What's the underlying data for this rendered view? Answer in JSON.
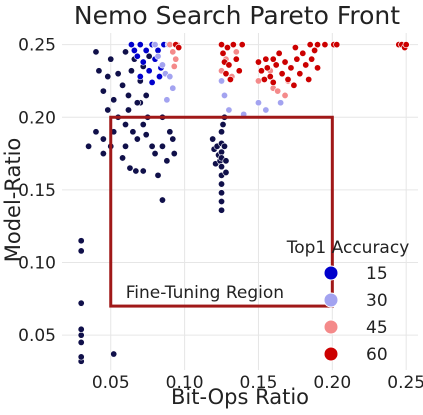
{
  "chart_data": {
    "type": "scatter",
    "title": "Nemo Search Pareto Front",
    "xlabel": "Bit-Ops Ratio",
    "ylabel": "Model-Ratio",
    "xlim": [
      0.017,
      0.258
    ],
    "ylim": [
      0.026,
      0.258
    ],
    "xticks": [
      0.05,
      0.1,
      0.15,
      0.2,
      0.25
    ],
    "xtick_labels": [
      "0.05",
      "0.10",
      "0.15",
      "0.20",
      "0.25"
    ],
    "yticks": [
      0.05,
      0.1,
      0.15,
      0.2,
      0.25
    ],
    "ytick_labels": [
      "0.05",
      "0.10",
      "0.15",
      "0.20",
      "0.25"
    ],
    "grid": true,
    "hue": "Top1 Accuracy",
    "colors": {
      "15": "#0000cc",
      "30": "#a3a3f0",
      "45": "#f48a8a",
      "60": "#cc0000",
      "low": "#10104a",
      "frame": "#a01818"
    },
    "legend": {
      "title": "Top1 Accuracy",
      "placement": "bottom-right",
      "entries": [
        {
          "label": "15",
          "value": 15
        },
        {
          "label": "30",
          "value": 30
        },
        {
          "label": "45",
          "value": 45
        },
        {
          "label": "60",
          "value": 60
        }
      ]
    },
    "annotations": [
      {
        "type": "rectangle",
        "label": "Fine-Tuning Region",
        "x": [
          0.05,
          0.2
        ],
        "y": [
          0.07,
          0.2
        ]
      }
    ],
    "series": [
      {
        "accuracy": 5,
        "points": [
          [
            0.03,
            0.032
          ],
          [
            0.03,
            0.035
          ],
          [
            0.03,
            0.045
          ],
          [
            0.03,
            0.05
          ],
          [
            0.03,
            0.054
          ],
          [
            0.03,
            0.072
          ],
          [
            0.03,
            0.108
          ],
          [
            0.03,
            0.115
          ],
          [
            0.052,
            0.037
          ],
          [
            0.035,
            0.18
          ],
          [
            0.04,
            0.19
          ],
          [
            0.045,
            0.175
          ],
          [
            0.045,
            0.185
          ],
          [
            0.048,
            0.205
          ],
          [
            0.05,
            0.18
          ],
          [
            0.052,
            0.19
          ],
          [
            0.055,
            0.2
          ],
          [
            0.058,
            0.172
          ],
          [
            0.06,
            0.18
          ],
          [
            0.06,
            0.195
          ],
          [
            0.062,
            0.205
          ],
          [
            0.065,
            0.19
          ],
          [
            0.07,
            0.21
          ],
          [
            0.072,
            0.195
          ],
          [
            0.075,
            0.2
          ],
          [
            0.078,
            0.18
          ],
          [
            0.08,
            0.175
          ],
          [
            0.082,
            0.16
          ],
          [
            0.085,
            0.18
          ],
          [
            0.085,
            0.2
          ],
          [
            0.088,
            0.17
          ],
          [
            0.09,
            0.19
          ],
          [
            0.092,
            0.185
          ],
          [
            0.093,
            0.175
          ],
          [
            0.04,
            0.245
          ],
          [
            0.042,
            0.232
          ],
          [
            0.045,
            0.218
          ],
          [
            0.048,
            0.228
          ],
          [
            0.05,
            0.24
          ],
          [
            0.052,
            0.212
          ],
          [
            0.055,
            0.23
          ],
          [
            0.058,
            0.222
          ],
          [
            0.06,
            0.245
          ],
          [
            0.062,
            0.215
          ],
          [
            0.064,
            0.232
          ],
          [
            0.066,
            0.24
          ],
          [
            0.068,
            0.21
          ],
          [
            0.07,
            0.225
          ],
          [
            0.072,
            0.235
          ],
          [
            0.074,
            0.215
          ],
          [
            0.076,
            0.242
          ],
          [
            0.063,
            0.165
          ],
          [
            0.067,
            0.163
          ],
          [
            0.072,
            0.163
          ],
          [
            0.085,
            0.143
          ],
          [
            0.068,
            0.185
          ],
          [
            0.074,
            0.188
          ],
          [
            0.119,
            0.185
          ],
          [
            0.12,
            0.178
          ],
          [
            0.121,
            0.168
          ],
          [
            0.122,
            0.18
          ],
          [
            0.123,
            0.174
          ],
          [
            0.124,
            0.17
          ],
          [
            0.125,
            0.19
          ],
          [
            0.125,
            0.182
          ],
          [
            0.125,
            0.176
          ],
          [
            0.125,
            0.172
          ],
          [
            0.125,
            0.166
          ],
          [
            0.125,
            0.16
          ],
          [
            0.125,
            0.154
          ],
          [
            0.125,
            0.148
          ],
          [
            0.125,
            0.142
          ],
          [
            0.125,
            0.136
          ],
          [
            0.126,
            0.195
          ],
          [
            0.127,
            0.18
          ],
          [
            0.128,
            0.17
          ],
          [
            0.128,
            0.162
          ],
          [
            0.127,
            0.2
          ]
        ]
      },
      {
        "accuracy": 15,
        "points": [
          [
            0.064,
            0.25
          ],
          [
            0.066,
            0.246
          ],
          [
            0.068,
            0.242
          ],
          [
            0.07,
            0.25
          ],
          [
            0.072,
            0.238
          ],
          [
            0.074,
            0.246
          ],
          [
            0.076,
            0.232
          ],
          [
            0.078,
            0.25
          ],
          [
            0.08,
            0.24
          ],
          [
            0.082,
            0.246
          ],
          [
            0.084,
            0.234
          ],
          [
            0.086,
            0.25
          ],
          [
            0.07,
            0.228
          ],
          [
            0.078,
            0.224
          ],
          [
            0.083,
            0.228
          ]
        ]
      },
      {
        "accuracy": 30,
        "points": [
          [
            0.08,
            0.25
          ],
          [
            0.082,
            0.242
          ],
          [
            0.085,
            0.236
          ],
          [
            0.087,
            0.23
          ],
          [
            0.089,
            0.25
          ],
          [
            0.09,
            0.228
          ],
          [
            0.092,
            0.22
          ],
          [
            0.088,
            0.212
          ],
          [
            0.125,
            0.225
          ],
          [
            0.127,
            0.215
          ],
          [
            0.13,
            0.205
          ],
          [
            0.15,
            0.21
          ],
          [
            0.155,
            0.205
          ],
          [
            0.165,
            0.21
          ],
          [
            0.14,
            0.202
          ]
        ]
      },
      {
        "accuracy": 45,
        "points": [
          [
            0.09,
            0.25
          ],
          [
            0.092,
            0.245
          ],
          [
            0.094,
            0.24
          ],
          [
            0.095,
            0.25
          ],
          [
            0.093,
            0.235
          ],
          [
            0.125,
            0.232
          ],
          [
            0.128,
            0.24
          ],
          [
            0.132,
            0.228
          ],
          [
            0.15,
            0.225
          ],
          [
            0.16,
            0.22
          ],
          [
            0.163,
            0.218
          ],
          [
            0.17,
            0.225
          ],
          [
            0.168,
            0.215
          ],
          [
            0.135,
            0.245
          ],
          [
            0.158,
            0.232
          ]
        ]
      },
      {
        "accuracy": 60,
        "points": [
          [
            0.094,
            0.25
          ],
          [
            0.096,
            0.248
          ],
          [
            0.125,
            0.25
          ],
          [
            0.126,
            0.244
          ],
          [
            0.127,
            0.238
          ],
          [
            0.128,
            0.23
          ],
          [
            0.129,
            0.248
          ],
          [
            0.13,
            0.236
          ],
          [
            0.131,
            0.226
          ],
          [
            0.133,
            0.25
          ],
          [
            0.135,
            0.24
          ],
          [
            0.137,
            0.232
          ],
          [
            0.139,
            0.25
          ],
          [
            0.15,
            0.238
          ],
          [
            0.152,
            0.232
          ],
          [
            0.154,
            0.226
          ],
          [
            0.155,
            0.24
          ],
          [
            0.156,
            0.234
          ],
          [
            0.158,
            0.228
          ],
          [
            0.16,
            0.224
          ],
          [
            0.16,
            0.24
          ],
          [
            0.162,
            0.236
          ],
          [
            0.164,
            0.244
          ],
          [
            0.166,
            0.23
          ],
          [
            0.168,
            0.238
          ],
          [
            0.17,
            0.226
          ],
          [
            0.172,
            0.234
          ],
          [
            0.174,
            0.222
          ],
          [
            0.176,
            0.24
          ],
          [
            0.178,
            0.23
          ],
          [
            0.18,
            0.244
          ],
          [
            0.182,
            0.236
          ],
          [
            0.184,
            0.226
          ],
          [
            0.186,
            0.24
          ],
          [
            0.188,
            0.246
          ],
          [
            0.19,
            0.234
          ],
          [
            0.175,
            0.248
          ],
          [
            0.185,
            0.25
          ],
          [
            0.19,
            0.25
          ],
          [
            0.195,
            0.25
          ],
          [
            0.201,
            0.25
          ],
          [
            0.203,
            0.25
          ],
          [
            0.245,
            0.25
          ],
          [
            0.247,
            0.25
          ],
          [
            0.249,
            0.248
          ],
          [
            0.25,
            0.25
          ]
        ]
      }
    ]
  }
}
